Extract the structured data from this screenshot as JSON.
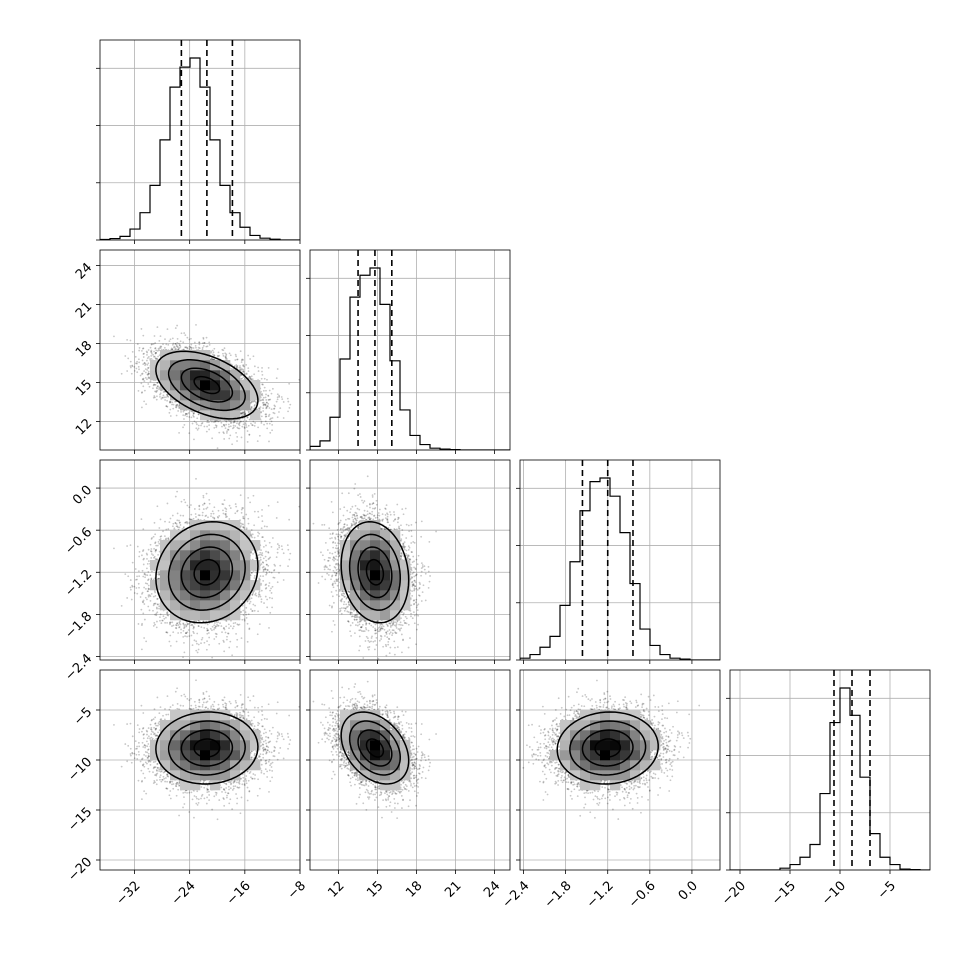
{
  "chart_data": {
    "type": "corner",
    "grid": true,
    "params": [
      {
        "mean": -21.5,
        "sd": 3.7,
        "range": [
          -37,
          -8
        ],
        "ticks": [
          -32,
          -24,
          -16,
          -8
        ],
        "tick_labels": [
          "−32",
          "−24",
          "−16",
          "−8"
        ],
        "hist_bins": 20,
        "hist_values": [
          0.003,
          0.008,
          0.02,
          0.06,
          0.15,
          0.3,
          0.55,
          0.84,
          0.95,
          1.0,
          0.84,
          0.55,
          0.3,
          0.15,
          0.07,
          0.025,
          0.01,
          0.004,
          0,
          0
        ],
        "quantiles": [
          -25.2,
          -21.5,
          -17.8
        ]
      },
      {
        "mean": 14.8,
        "sd": 1.3,
        "range": [
          9.8,
          25.2
        ],
        "ticks": [
          12,
          15,
          18,
          21,
          24
        ],
        "tick_labels": [
          "12",
          "15",
          "18",
          "21",
          "24"
        ],
        "hist_bins": 20,
        "hist_values": [
          0.02,
          0.05,
          0.18,
          0.5,
          0.84,
          0.96,
          1.0,
          0.8,
          0.49,
          0.22,
          0.08,
          0.03,
          0.01,
          0.005,
          0.002,
          0,
          0,
          0,
          0,
          0
        ],
        "quantiles": [
          13.5,
          14.8,
          16.1
        ]
      },
      {
        "mean": -1.2,
        "sd": 0.36,
        "range": [
          -2.45,
          0.4
        ],
        "ticks": [
          -2.4,
          -1.8,
          -1.2,
          -0.6,
          0.0
        ],
        "tick_labels": [
          "−2.4",
          "−1.8",
          "−1.2",
          "−0.6",
          "0.0"
        ],
        "hist_bins": 20,
        "hist_values": [
          0.01,
          0.03,
          0.07,
          0.13,
          0.3,
          0.54,
          0.82,
          0.98,
          1.0,
          0.9,
          0.7,
          0.42,
          0.17,
          0.08,
          0.03,
          0.01,
          0.005,
          0,
          0,
          0
        ],
        "quantiles": [
          -1.56,
          -1.2,
          -0.84
        ]
      },
      {
        "mean": -8.8,
        "sd": 1.8,
        "range": [
          -21,
          -1
        ],
        "ticks": [
          -20,
          -15,
          -10,
          -5
        ],
        "tick_labels": [
          "−20",
          "−15",
          "−10",
          "−5"
        ],
        "hist_bins": 20,
        "hist_values": [
          0,
          0,
          0,
          0,
          0,
          0.01,
          0.03,
          0.07,
          0.14,
          0.42,
          0.81,
          1.0,
          0.85,
          0.51,
          0.2,
          0.07,
          0.03,
          0.005,
          0.002,
          0
        ],
        "quantiles": [
          -10.6,
          -8.8,
          -7.0
        ]
      }
    ],
    "correlations": {
      "1_0": -0.45,
      "2_0": 0.12,
      "2_1": -0.15,
      "3_0": 0.03,
      "3_1": -0.35,
      "3_2": 0.05
    },
    "contour_levels_sigma": [
      0.5,
      1.0,
      1.5,
      2.0
    ]
  }
}
